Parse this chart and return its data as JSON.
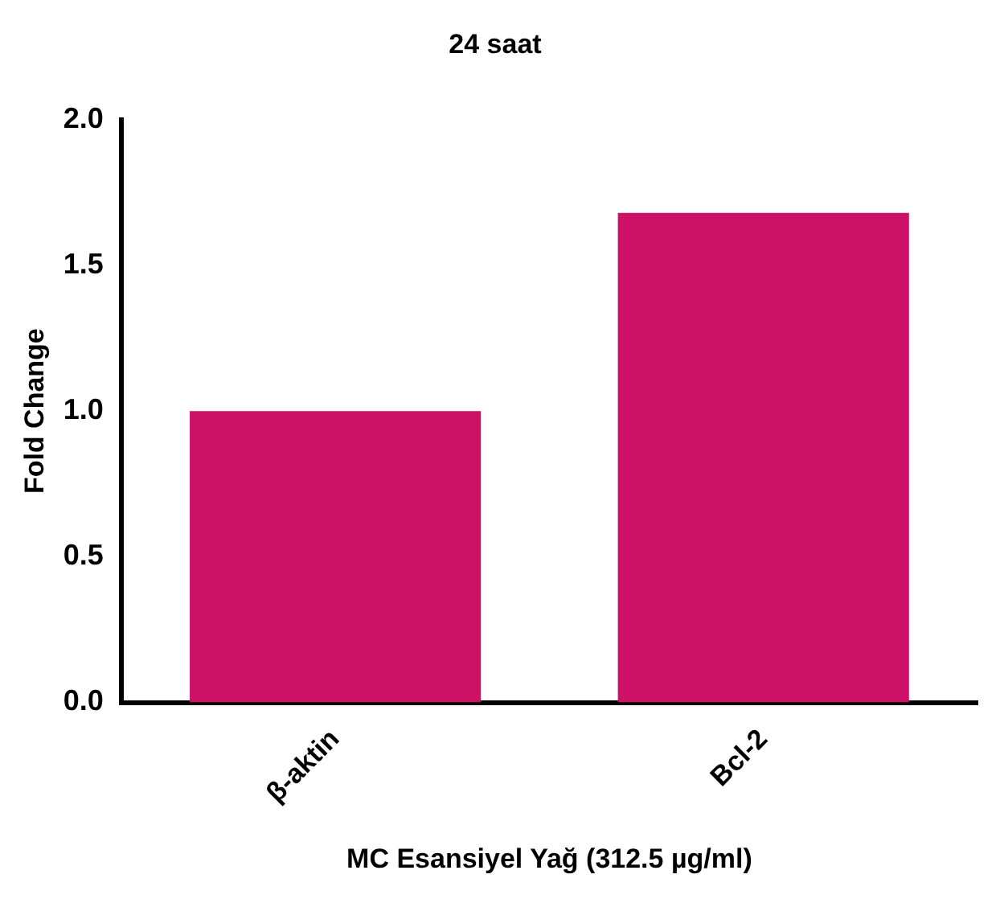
{
  "chart_data": {
    "type": "bar",
    "title": "24 saat",
    "xlabel": "MC Esansiyel Yağ (312.5 µg/ml)",
    "ylabel": "Fold Change",
    "categories": [
      "β-aktin",
      "Bcl-2"
    ],
    "values": [
      1.0,
      1.68
    ],
    "colors": [
      "#cc1166",
      "#cc1166"
    ],
    "ylim": [
      0,
      2
    ],
    "yticks": [
      {
        "value": 0,
        "label": "0.0"
      },
      {
        "value": 0.5,
        "label": "0.5"
      },
      {
        "value": 1,
        "label": "1.0"
      },
      {
        "value": 1.5,
        "label": "1.5"
      },
      {
        "value": 2,
        "label": "2.0"
      }
    ],
    "grid": false,
    "legend": false
  }
}
